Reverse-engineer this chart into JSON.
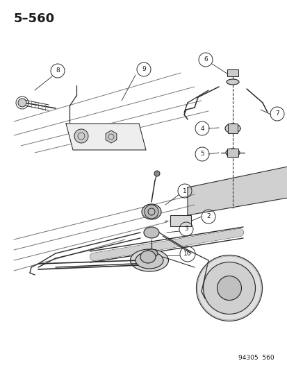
{
  "title": "5–560",
  "footer": "94305  560",
  "bg": "#ffffff",
  "lc": "#2a2a2a",
  "tc": "#1a1a1a",
  "fig_w": 4.14,
  "fig_h": 5.33,
  "dpi": 100,
  "rail_color": "#555555",
  "part_gray": "#b8b8b8",
  "light_gray": "#d8d8d8"
}
